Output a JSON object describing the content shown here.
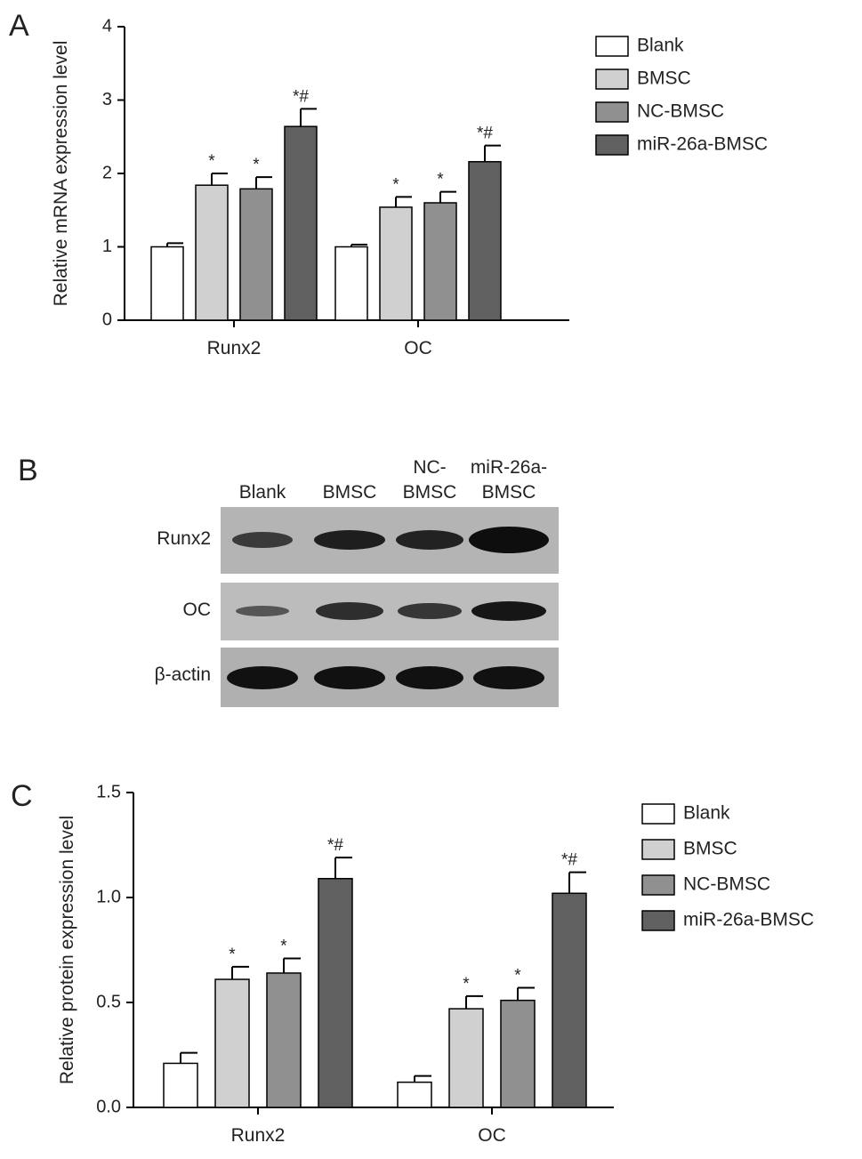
{
  "chart_data": [
    {
      "type": "bar",
      "panel": "A",
      "ylabel": "Relative mRNA expression level",
      "categories": [
        "Runx2",
        "OC"
      ],
      "series": [
        {
          "name": "Blank",
          "color": "#ffffff",
          "values": [
            1.0,
            1.0
          ],
          "errors": [
            0.05,
            0.03
          ]
        },
        {
          "name": "BMSC",
          "color": "#d0d0d0",
          "values": [
            1.84,
            1.54
          ],
          "errors": [
            0.16,
            0.14
          ],
          "annotations": [
            "*",
            "*"
          ]
        },
        {
          "name": "NC-BMSC",
          "color": "#909090",
          "values": [
            1.79,
            1.6
          ],
          "errors": [
            0.16,
            0.15
          ],
          "annotations": [
            "*",
            "*"
          ]
        },
        {
          "name": "miR-26a-BMSC",
          "color": "#606060",
          "values": [
            2.64,
            2.16
          ],
          "errors": [
            0.24,
            0.22
          ],
          "annotations": [
            "*#",
            "*#"
          ]
        }
      ],
      "ylim": [
        0,
        4
      ],
      "yticks": [
        0,
        1,
        2,
        3,
        4
      ],
      "legend": "right"
    },
    {
      "type": "bar",
      "panel": "C",
      "ylabel": "Relative protein expression level",
      "categories": [
        "Runx2",
        "OC"
      ],
      "series": [
        {
          "name": "Blank",
          "color": "#ffffff",
          "values": [
            0.21,
            0.12
          ],
          "errors": [
            0.05,
            0.03
          ]
        },
        {
          "name": "BMSC",
          "color": "#d0d0d0",
          "values": [
            0.61,
            0.47
          ],
          "errors": [
            0.06,
            0.06
          ],
          "annotations": [
            "*",
            "*"
          ]
        },
        {
          "name": "NC-BMSC",
          "color": "#909090",
          "values": [
            0.64,
            0.51
          ],
          "errors": [
            0.07,
            0.06
          ],
          "annotations": [
            "*",
            "*"
          ]
        },
        {
          "name": "miR-26a-BMSC",
          "color": "#606060",
          "values": [
            1.09,
            1.02
          ],
          "errors": [
            0.1,
            0.1
          ],
          "annotations": [
            "*#",
            "*#"
          ]
        }
      ],
      "ylim": [
        0,
        1.5
      ],
      "yticks": [
        {
          "value": 0,
          "label": "0.0"
        },
        {
          "value": 0.5,
          "label": "0.5"
        },
        {
          "value": 1,
          "label": "1.0"
        },
        1.5
      ],
      "legend": "right"
    }
  ],
  "blot": {
    "panel": "B",
    "columns": [
      [
        "Blank"
      ],
      [
        "BMSC"
      ],
      [
        "NC-",
        "BMSC"
      ],
      [
        "miR-26a-",
        "BMSC"
      ]
    ],
    "rows": [
      "Runx2",
      "OC",
      "β-actin"
    ]
  }
}
